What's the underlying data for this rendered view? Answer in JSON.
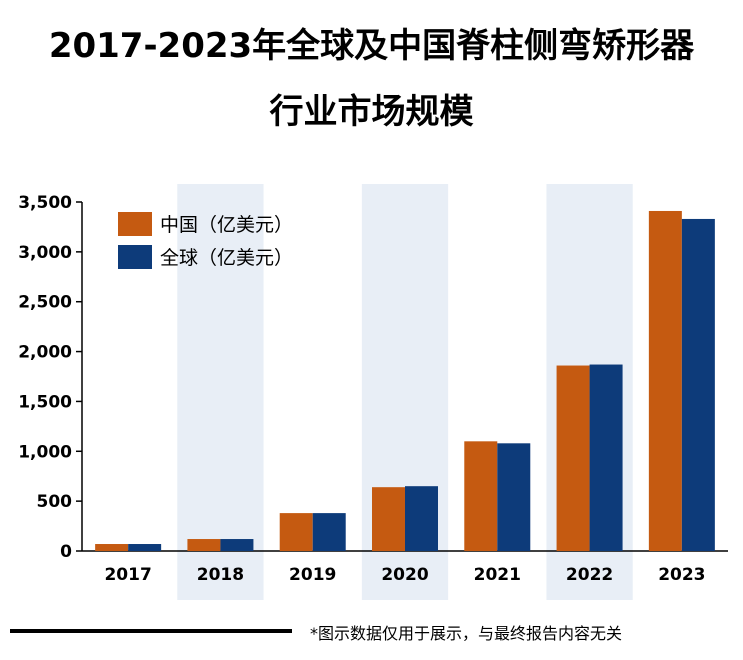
{
  "title": {
    "line1": "2017-2023年全球及中国脊柱侧弯矫形器",
    "line2": "行业市场规模"
  },
  "footnote": "*图示数据仅用于展示，与最终报告内容无关",
  "colors": {
    "china": "#c55a11",
    "global": "#0d3b7a",
    "band": "#e8eef6"
  },
  "chart_data": {
    "type": "bar",
    "title": "2017-2023年全球及中国脊柱侧弯矫形器行业市场规模",
    "xlabel": "",
    "ylabel": "",
    "categories": [
      "2017",
      "2018",
      "2019",
      "2020",
      "2021",
      "2022",
      "2023"
    ],
    "series": [
      {
        "name": "中国（亿美元）",
        "values": [
          70,
          120,
          380,
          640,
          1100,
          1860,
          3410
        ]
      },
      {
        "name": "全球（亿美元）",
        "values": [
          70,
          120,
          380,
          650,
          1080,
          1870,
          3330
        ]
      }
    ],
    "ylim": [
      0,
      3500
    ],
    "yticks": [
      0,
      500,
      1000,
      1500,
      2000,
      2500,
      3000,
      3500
    ],
    "ytick_labels": [
      "0",
      "500",
      "1,000",
      "1,500",
      "2,000",
      "2,500",
      "3,000",
      "3,500"
    ],
    "legend_position": "top-left",
    "grid": false
  }
}
